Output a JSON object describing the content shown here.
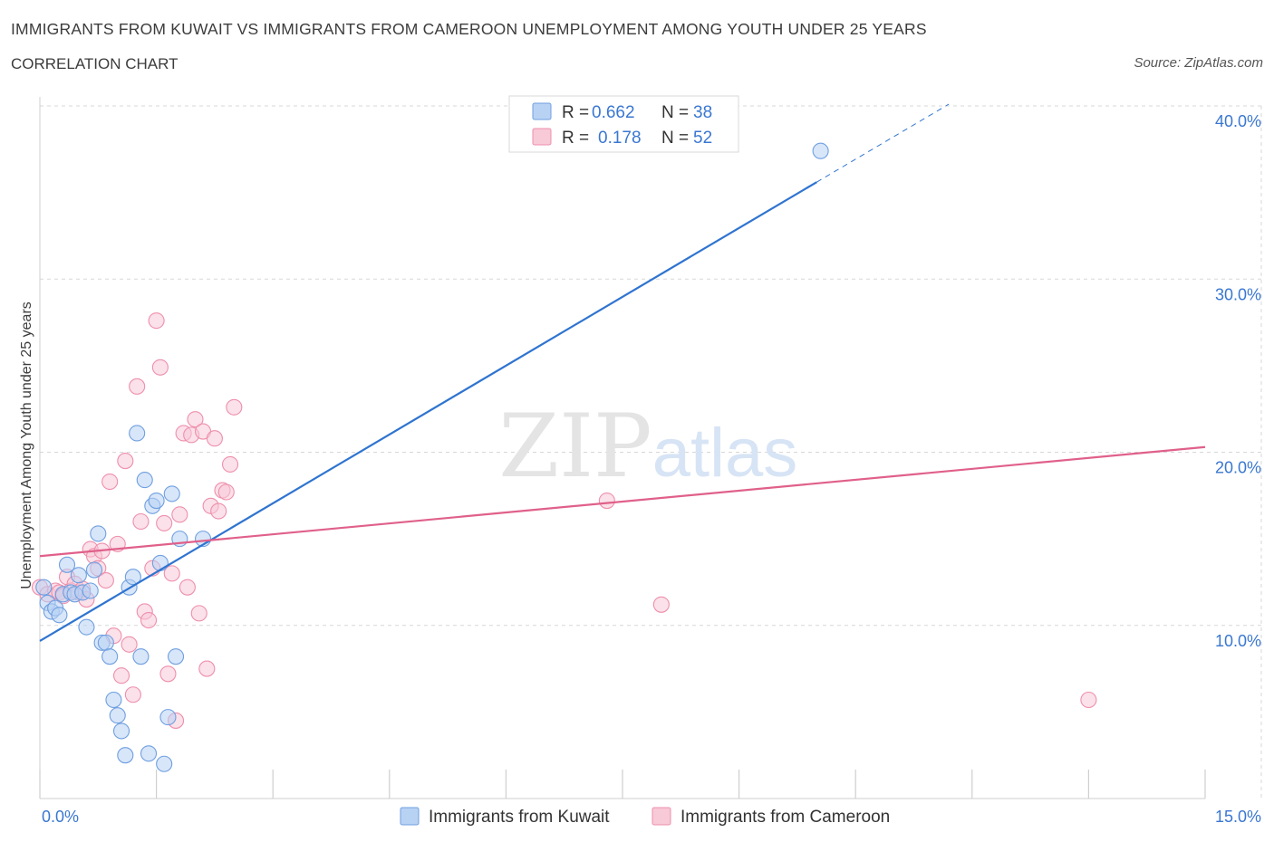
{
  "header": {
    "title": "IMMIGRANTS FROM KUWAIT VS IMMIGRANTS FROM CAMEROON UNEMPLOYMENT AMONG YOUTH UNDER 25 YEARS",
    "subtitle": "CORRELATION CHART",
    "source": "Source: ZipAtlas.com"
  },
  "watermark": {
    "zip": "ZIP",
    "atlas": "atlas"
  },
  "legend_top": {
    "rows": [
      {
        "r_label": "R =",
        "r_value": "0.662",
        "n_label": "N =",
        "n_value": "38",
        "color": "#6f9fe0"
      },
      {
        "r_label": "R =",
        "r_value": "0.178",
        "n_label": "N =",
        "n_value": "52",
        "color": "#ee8fac"
      }
    ]
  },
  "legend_bottom": {
    "items": [
      {
        "label": "Immigrants from Kuwait",
        "color": "#6f9fe0"
      },
      {
        "label": "Immigrants from Cameroon",
        "color": "#ee8fac"
      }
    ]
  },
  "colors": {
    "kuwait": "#6f9fe0",
    "kuwait_line": "#2f74d0",
    "cameroon": "#ee8fac",
    "cameroon_line": "#e0608a",
    "tick_label": "#3a77d1",
    "grid": "#d7d7d7"
  },
  "chart_data": {
    "type": "scatter",
    "ylabel": "Unemployment Among Youth under 25 years",
    "xlim": [
      0,
      15
    ],
    "ylim": [
      0,
      40
    ],
    "x_tick_labels": [
      {
        "v": 0,
        "label": "0.0%"
      },
      {
        "v": 15,
        "label": "15.0%"
      }
    ],
    "y_tick_labels": [
      {
        "v": 10,
        "label": "10.0%"
      },
      {
        "v": 20,
        "label": "20.0%"
      },
      {
        "v": 30,
        "label": "30.0%"
      },
      {
        "v": 40,
        "label": "40.0%"
      }
    ],
    "series": [
      {
        "name": "Immigrants from Kuwait",
        "trend": {
          "x0": 0,
          "y0": 9.1,
          "x1": 10.0,
          "y1": 35.6,
          "x_dash_end": 11.7,
          "y_dash_end": 40.1
        },
        "points": [
          [
            0.05,
            12.2
          ],
          [
            0.1,
            11.3
          ],
          [
            0.15,
            10.8
          ],
          [
            0.2,
            11.0
          ],
          [
            0.25,
            10.6
          ],
          [
            0.3,
            11.8
          ],
          [
            0.35,
            13.5
          ],
          [
            0.4,
            11.9
          ],
          [
            0.45,
            11.8
          ],
          [
            0.5,
            12.9
          ],
          [
            0.55,
            11.9
          ],
          [
            0.6,
            9.9
          ],
          [
            0.65,
            12.0
          ],
          [
            0.7,
            13.2
          ],
          [
            0.75,
            15.3
          ],
          [
            0.8,
            9.0
          ],
          [
            0.85,
            9.0
          ],
          [
            0.9,
            8.2
          ],
          [
            0.95,
            5.7
          ],
          [
            1.0,
            4.8
          ],
          [
            1.05,
            3.9
          ],
          [
            1.1,
            2.5
          ],
          [
            1.15,
            12.2
          ],
          [
            1.2,
            12.8
          ],
          [
            1.25,
            21.1
          ],
          [
            1.3,
            8.2
          ],
          [
            1.35,
            18.4
          ],
          [
            1.4,
            2.6
          ],
          [
            1.45,
            16.9
          ],
          [
            1.5,
            17.2
          ],
          [
            1.55,
            13.6
          ],
          [
            1.6,
            2.0
          ],
          [
            1.65,
            4.7
          ],
          [
            1.7,
            17.6
          ],
          [
            1.75,
            8.2
          ],
          [
            1.8,
            15.0
          ],
          [
            2.1,
            15.0
          ],
          [
            10.05,
            37.4
          ]
        ]
      },
      {
        "name": "Immigrants from Cameroon",
        "trend": {
          "x0": 0,
          "y0": 14.0,
          "x1": 15.0,
          "y1": 20.3
        },
        "points": [
          [
            0.0,
            12.2
          ],
          [
            0.1,
            11.8
          ],
          [
            0.2,
            12.0
          ],
          [
            0.25,
            11.9
          ],
          [
            0.3,
            11.7
          ],
          [
            0.35,
            12.8
          ],
          [
            0.4,
            12.0
          ],
          [
            0.45,
            12.4
          ],
          [
            0.5,
            11.9
          ],
          [
            0.55,
            12.1
          ],
          [
            0.6,
            11.5
          ],
          [
            0.65,
            14.4
          ],
          [
            0.7,
            14.0
          ],
          [
            0.75,
            13.3
          ],
          [
            0.8,
            14.3
          ],
          [
            0.85,
            12.6
          ],
          [
            0.9,
            18.3
          ],
          [
            0.95,
            9.4
          ],
          [
            1.0,
            14.7
          ],
          [
            1.05,
            7.1
          ],
          [
            1.1,
            19.5
          ],
          [
            1.15,
            8.9
          ],
          [
            1.2,
            6.0
          ],
          [
            1.25,
            23.8
          ],
          [
            1.3,
            16.0
          ],
          [
            1.35,
            10.8
          ],
          [
            1.4,
            10.3
          ],
          [
            1.45,
            13.3
          ],
          [
            1.5,
            27.6
          ],
          [
            1.55,
            24.9
          ],
          [
            1.6,
            15.9
          ],
          [
            1.65,
            7.2
          ],
          [
            1.7,
            13.0
          ],
          [
            1.75,
            4.5
          ],
          [
            1.8,
            16.4
          ],
          [
            1.85,
            21.1
          ],
          [
            1.9,
            12.2
          ],
          [
            1.95,
            21.0
          ],
          [
            2.0,
            21.9
          ],
          [
            2.05,
            10.7
          ],
          [
            2.1,
            21.2
          ],
          [
            2.15,
            7.5
          ],
          [
            2.2,
            16.9
          ],
          [
            2.25,
            20.8
          ],
          [
            2.3,
            16.6
          ],
          [
            2.35,
            17.8
          ],
          [
            2.4,
            17.7
          ],
          [
            2.45,
            19.3
          ],
          [
            2.5,
            22.6
          ],
          [
            7.3,
            17.2
          ],
          [
            8.0,
            11.2
          ],
          [
            13.5,
            5.7
          ]
        ]
      }
    ]
  }
}
